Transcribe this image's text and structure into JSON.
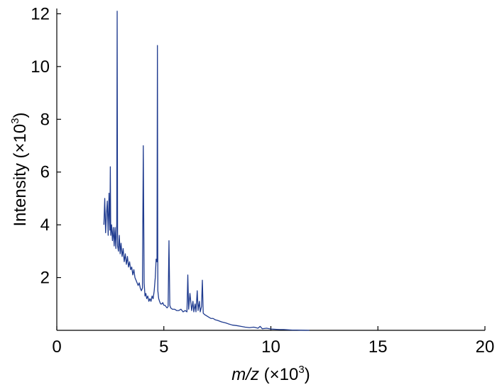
{
  "chart_data": {
    "type": "line",
    "title": "",
    "xlabel": {
      "italic": "m/z",
      "rest": " (×10",
      "sup": "3",
      "close": ")"
    },
    "ylabel": {
      "text": "Intensity (×10",
      "sup": "3",
      "close": ")"
    },
    "xlim": [
      0,
      20
    ],
    "ylim": [
      0,
      12.2
    ],
    "xticks": [
      0,
      5,
      10,
      15,
      20
    ],
    "yticks": [
      2,
      4,
      6,
      8,
      10,
      12
    ],
    "xtick_labels": [
      "0",
      "5",
      "10",
      "15",
      "20"
    ],
    "ytick_labels": [
      "2",
      "4",
      "6",
      "8",
      "10",
      "12"
    ],
    "grid": false,
    "line_color": "#1f3b8f",
    "series": [
      {
        "x": [
          2.2,
          2.24,
          2.28,
          2.32,
          2.36,
          2.4,
          2.44,
          2.48,
          2.5,
          2.52,
          2.56,
          2.6,
          2.64,
          2.68,
          2.72,
          2.76,
          2.8,
          2.82,
          2.84,
          2.88,
          2.92,
          2.96,
          3.0,
          3.05,
          3.1,
          3.15,
          3.2,
          3.25,
          3.3,
          3.35,
          3.4,
          3.45,
          3.5,
          3.55,
          3.6,
          3.65,
          3.7,
          3.75,
          3.8,
          3.85,
          3.9,
          3.95,
          4.0,
          4.04,
          4.08,
          4.12,
          4.16,
          4.2,
          4.25,
          4.3,
          4.35,
          4.4,
          4.45,
          4.5,
          4.55,
          4.6,
          4.64,
          4.68,
          4.7,
          4.72,
          4.76,
          4.8,
          4.85,
          4.9,
          4.95,
          5.0,
          5.05,
          5.1,
          5.15,
          5.2,
          5.24,
          5.28,
          5.32,
          5.4,
          5.5,
          5.6,
          5.7,
          5.8,
          5.9,
          6.0,
          6.08,
          6.12,
          6.16,
          6.22,
          6.3,
          6.36,
          6.4,
          6.46,
          6.5,
          6.56,
          6.6,
          6.66,
          6.7,
          6.76,
          6.8,
          6.84,
          6.9,
          7.0,
          7.1,
          7.2,
          7.3,
          7.4,
          7.5,
          7.6,
          7.7,
          7.8,
          7.9,
          8.0,
          8.2,
          8.4,
          8.6,
          8.8,
          9.0,
          9.2,
          9.4,
          9.5,
          9.6,
          9.8,
          10.0,
          10.2,
          10.4,
          10.6,
          10.8,
          11.0,
          11.2,
          11.4,
          11.6,
          11.8
        ],
        "y": [
          4.0,
          5.0,
          3.7,
          4.4,
          4.9,
          3.6,
          5.2,
          3.8,
          6.2,
          3.6,
          4.0,
          3.4,
          3.9,
          3.2,
          3.9,
          3.1,
          4.0,
          12.1,
          3.2,
          3.0,
          3.6,
          2.9,
          3.3,
          2.8,
          3.1,
          2.6,
          2.9,
          2.5,
          2.8,
          2.4,
          2.6,
          2.3,
          2.4,
          2.1,
          2.3,
          2.0,
          1.9,
          1.8,
          1.7,
          1.8,
          1.6,
          1.5,
          1.6,
          7.0,
          1.8,
          1.3,
          1.4,
          1.2,
          1.3,
          1.1,
          1.2,
          1.1,
          1.3,
          1.2,
          1.5,
          2.0,
          2.7,
          2.6,
          10.8,
          1.5,
          1.2,
          1.1,
          1.0,
          1.0,
          1.05,
          0.95,
          0.95,
          0.9,
          0.85,
          0.9,
          3.4,
          0.95,
          0.85,
          0.8,
          0.8,
          0.75,
          0.75,
          0.8,
          0.7,
          0.75,
          0.7,
          2.1,
          0.8,
          1.4,
          0.75,
          1.1,
          0.7,
          1.0,
          0.7,
          1.5,
          0.75,
          1.1,
          0.7,
          0.9,
          1.9,
          0.65,
          0.6,
          0.55,
          0.5,
          0.45,
          0.45,
          0.4,
          0.38,
          0.35,
          0.32,
          0.3,
          0.28,
          0.25,
          0.2,
          0.18,
          0.15,
          0.12,
          0.1,
          0.12,
          0.08,
          0.15,
          0.06,
          0.08,
          0.05,
          0.04,
          0.03,
          0.03,
          0.02,
          0.01,
          0.01,
          0.005,
          0.002,
          0.0
        ]
      }
    ]
  }
}
